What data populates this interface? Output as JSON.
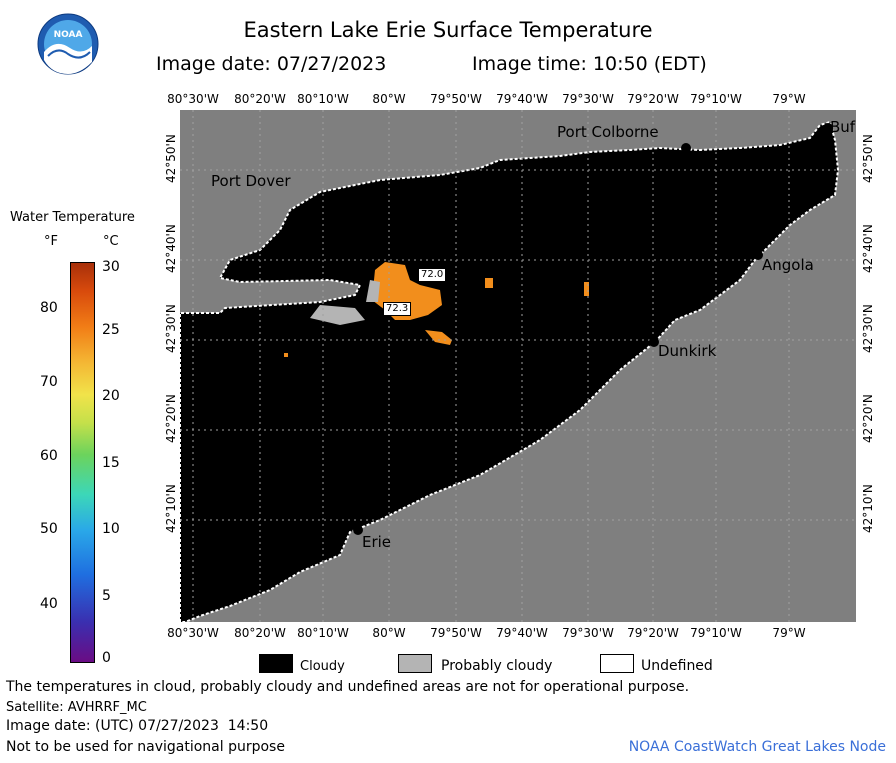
{
  "header": {
    "title": "Eastern Lake Erie Surface Temperature",
    "image_date": "Image date: 07/27/2023",
    "image_time": "Image time: 10:50 (EDT)"
  },
  "logo": {
    "text": "NOAA"
  },
  "map": {
    "lon_labels": [
      "80°30'W",
      "80°20'W",
      "80°10'W",
      "80°W",
      "79°50'W",
      "79°40'W",
      "79°30'W",
      "79°20'W",
      "79°10'W",
      "79°W"
    ],
    "lat_labels": [
      "42°50'N",
      "42°40'N",
      "42°30'N",
      "42°20'N",
      "42°10'N"
    ],
    "cities": {
      "port_colborne": "Port Colborne",
      "port_dover": "Port Dover",
      "angola": "Angola",
      "dunkirk": "Dunkirk",
      "erie": "Erie",
      "buffalo": "Buf"
    },
    "temp_labels": [
      "72.0",
      "72.3"
    ],
    "colors": {
      "land": "#7f7f7f",
      "cloud": "#000000",
      "warm_water": "#f28e1c",
      "grid": "#a0a0a0"
    }
  },
  "legend": {
    "title": "Water Temperature",
    "unit_f": "°F",
    "unit_c": "°C",
    "f_ticks": [
      "80",
      "70",
      "60",
      "50",
      "40"
    ],
    "c_ticks": [
      "30",
      "25",
      "20",
      "15",
      "10",
      "5",
      "0"
    ],
    "items": {
      "cloudy": "Cloudy",
      "probably_cloudy": "Probably cloudy",
      "undefined": "Undefined"
    }
  },
  "footer": {
    "disclaimer": "The temperatures in cloud, probably cloudy and undefined areas are not for operational purpose.",
    "satellite": "Satellite: AVHRRF_MC",
    "utc_date": "Image date: (UTC) 07/27/2023  14:50",
    "nav_warning": "Not to be used for navigational purpose",
    "credit": "NOAA CoastWatch Great Lakes Node"
  }
}
